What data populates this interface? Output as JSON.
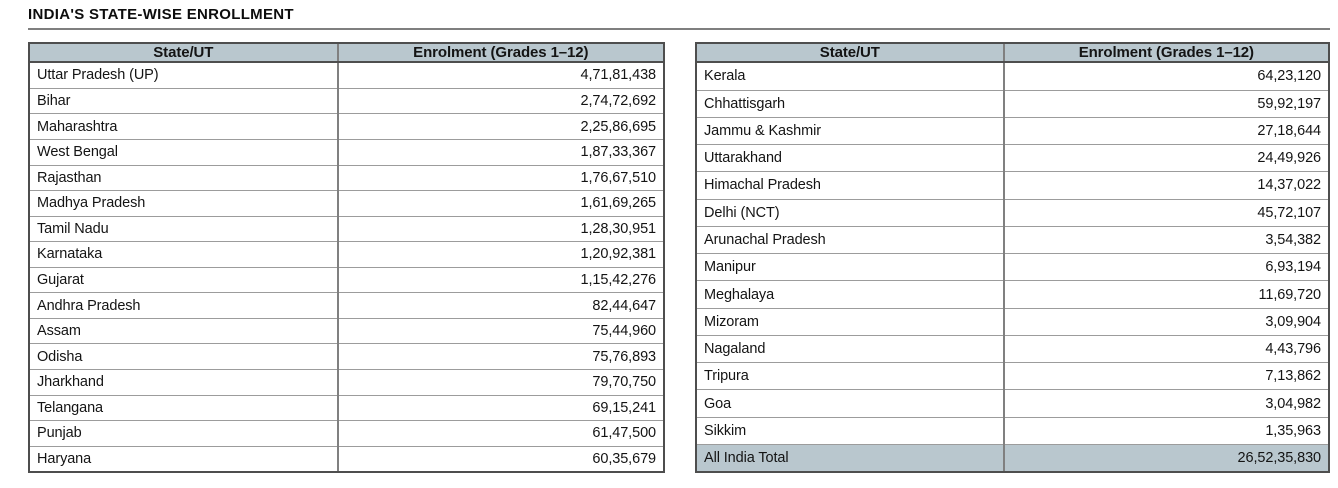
{
  "page": {
    "title": "INDIA'S STATE-WISE ENROLLMENT"
  },
  "colors": {
    "header_bg": "#b9c7ce",
    "total_row_bg": "#b9c7ce",
    "outer_border": "#4e4e4e",
    "inner_border": "#9c9c9c",
    "column_divider": "#808080",
    "text": "#141414",
    "title_rule": "#7f7f7f"
  },
  "left_table": {
    "header": {
      "state": "State/UT",
      "enrolment": "Enrolment (Grades 1–12)"
    },
    "rows": [
      {
        "state": "Uttar Pradesh (UP)",
        "value": "4,71,81,438"
      },
      {
        "state": "Bihar",
        "value": "2,74,72,692"
      },
      {
        "state": "Maharashtra",
        "value": "2,25,86,695"
      },
      {
        "state": "West Bengal",
        "value": "1,87,33,367"
      },
      {
        "state": "Rajasthan",
        "value": "1,76,67,510"
      },
      {
        "state": "Madhya Pradesh",
        "value": "1,61,69,265"
      },
      {
        "state": "Tamil Nadu",
        "value": "1,28,30,951"
      },
      {
        "state": "Karnataka",
        "value": "1,20,92,381"
      },
      {
        "state": "Gujarat",
        "value": "1,15,42,276"
      },
      {
        "state": "Andhra Pradesh",
        "value": "82,44,647"
      },
      {
        "state": "Assam",
        "value": "75,44,960"
      },
      {
        "state": "Odisha",
        "value": "75,76,893"
      },
      {
        "state": "Jharkhand",
        "value": "79,70,750"
      },
      {
        "state": "Telangana",
        "value": "69,15,241"
      },
      {
        "state": "Punjab",
        "value": "61,47,500"
      },
      {
        "state": "Haryana",
        "value": "60,35,679"
      }
    ]
  },
  "right_table": {
    "header": {
      "state": "State/UT",
      "enrolment": "Enrolment (Grades 1–12)"
    },
    "rows": [
      {
        "state": "Kerala",
        "value": "64,23,120"
      },
      {
        "state": "Chhattisgarh",
        "value": "59,92,197"
      },
      {
        "state": "Jammu & Kashmir",
        "value": "27,18,644"
      },
      {
        "state": "Uttarakhand",
        "value": "24,49,926"
      },
      {
        "state": "Himachal Pradesh",
        "value": "14,37,022"
      },
      {
        "state": "Delhi (NCT)",
        "value": "45,72,107"
      },
      {
        "state": "Arunachal Pradesh",
        "value": "3,54,382"
      },
      {
        "state": "Manipur",
        "value": "6,93,194"
      },
      {
        "state": "Meghalaya",
        "value": "11,69,720"
      },
      {
        "state": "Mizoram",
        "value": "3,09,904"
      },
      {
        "state": "Nagaland",
        "value": "4,43,796"
      },
      {
        "state": "Tripura",
        "value": "7,13,862"
      },
      {
        "state": "Goa",
        "value": "3,04,982"
      },
      {
        "state": "Sikkim",
        "value": "1,35,963"
      }
    ],
    "total": {
      "state": "All India Total",
      "value": "26,52,35,830"
    }
  }
}
